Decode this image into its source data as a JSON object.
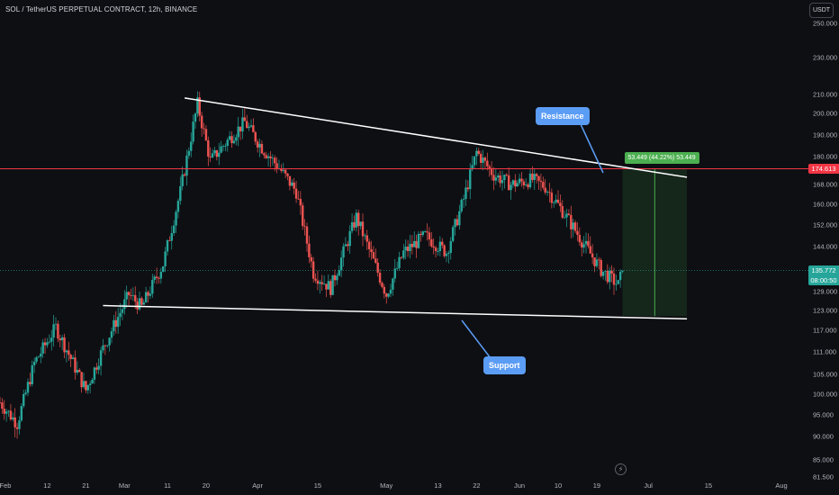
{
  "header": {
    "title": "SOL / TetherUS PERPETUAL CONTRACT, 12h, BINANCE",
    "currency": "USDT"
  },
  "colors": {
    "background": "#0e0f13",
    "up": "#26a69a",
    "down": "#ef5350",
    "trendline": "#ffffff",
    "horizontal_line": "#f23645",
    "callout": "#5b9cf5",
    "measure": "#4caf50"
  },
  "annotations": {
    "resistance_label": "Resistance",
    "support_label": "Support",
    "measure_label": "53.449 (44.22%) 53.449"
  },
  "price_tags": {
    "horizontal_level": "174.613",
    "current_price": "135.772",
    "countdown": "08:00:50"
  },
  "chart_data": {
    "type": "candlestick",
    "title": "SOL / TetherUS PERPETUAL CONTRACT, 12h, BINANCE",
    "y_scale": "log",
    "y_range": [
      81.5,
      265
    ],
    "y_ticks": [
      "250.000",
      "230.000",
      "210.000",
      "200.000",
      "190.000",
      "180.000",
      "168.000",
      "160.000",
      "152.000",
      "144.000",
      "129.000",
      "123.000",
      "117.000",
      "111.000",
      "105.000",
      "100.000",
      "95.000",
      "90.000",
      "85.000",
      "81.500"
    ],
    "x_ticks": [
      "Feb",
      "12",
      "21",
      "Mar",
      "11",
      "20",
      "Apr",
      "15",
      "May",
      "13",
      "22",
      "Jun",
      "10",
      "19",
      "Jul",
      "15",
      "Aug"
    ],
    "x_range": [
      "2024-02-01",
      "2024-08-01"
    ],
    "price_path": [
      [
        "2024-02-01",
        98
      ],
      [
        "2024-02-05",
        93
      ],
      [
        "2024-02-09",
        108
      ],
      [
        "2024-02-14",
        118
      ],
      [
        "2024-02-18",
        108
      ],
      [
        "2024-02-21",
        101
      ],
      [
        "2024-02-25",
        112
      ],
      [
        "2024-03-02",
        128
      ],
      [
        "2024-03-05",
        124
      ],
      [
        "2024-03-10",
        138
      ],
      [
        "2024-03-14",
        165
      ],
      [
        "2024-03-18",
        205
      ],
      [
        "2024-03-21",
        178
      ],
      [
        "2024-03-24",
        185
      ],
      [
        "2024-03-29",
        196
      ],
      [
        "2024-04-02",
        184
      ],
      [
        "2024-04-06",
        175
      ],
      [
        "2024-04-10",
        165
      ],
      [
        "2024-04-14",
        135
      ],
      [
        "2024-04-18",
        130
      ],
      [
        "2024-04-24",
        155
      ],
      [
        "2024-05-01",
        128
      ],
      [
        "2024-05-05",
        142
      ],
      [
        "2024-05-10",
        148
      ],
      [
        "2024-05-15",
        142
      ],
      [
        "2024-05-19",
        162
      ],
      [
        "2024-05-22",
        182
      ],
      [
        "2024-05-26",
        172
      ],
      [
        "2024-05-30",
        168
      ],
      [
        "2024-06-04",
        170
      ],
      [
        "2024-06-07",
        167
      ],
      [
        "2024-06-12",
        155
      ],
      [
        "2024-06-16",
        145
      ],
      [
        "2024-06-20",
        136
      ],
      [
        "2024-06-24",
        131
      ],
      [
        "2024-06-25",
        135.772
      ]
    ],
    "trendlines": [
      {
        "name": "Resistance",
        "from": [
          "2024-03-15",
          208
        ],
        "to": [
          "2024-07-10",
          171
        ]
      },
      {
        "name": "Support",
        "from": [
          "2024-02-25",
          124.5
        ],
        "to": [
          "2024-07-10",
          120.5
        ]
      }
    ],
    "horizontal_line": 174.613,
    "last_price": 135.772,
    "measure_range": {
      "from": 121.3,
      "to": 174.7,
      "change": 53.449,
      "percent": 44.22
    }
  }
}
